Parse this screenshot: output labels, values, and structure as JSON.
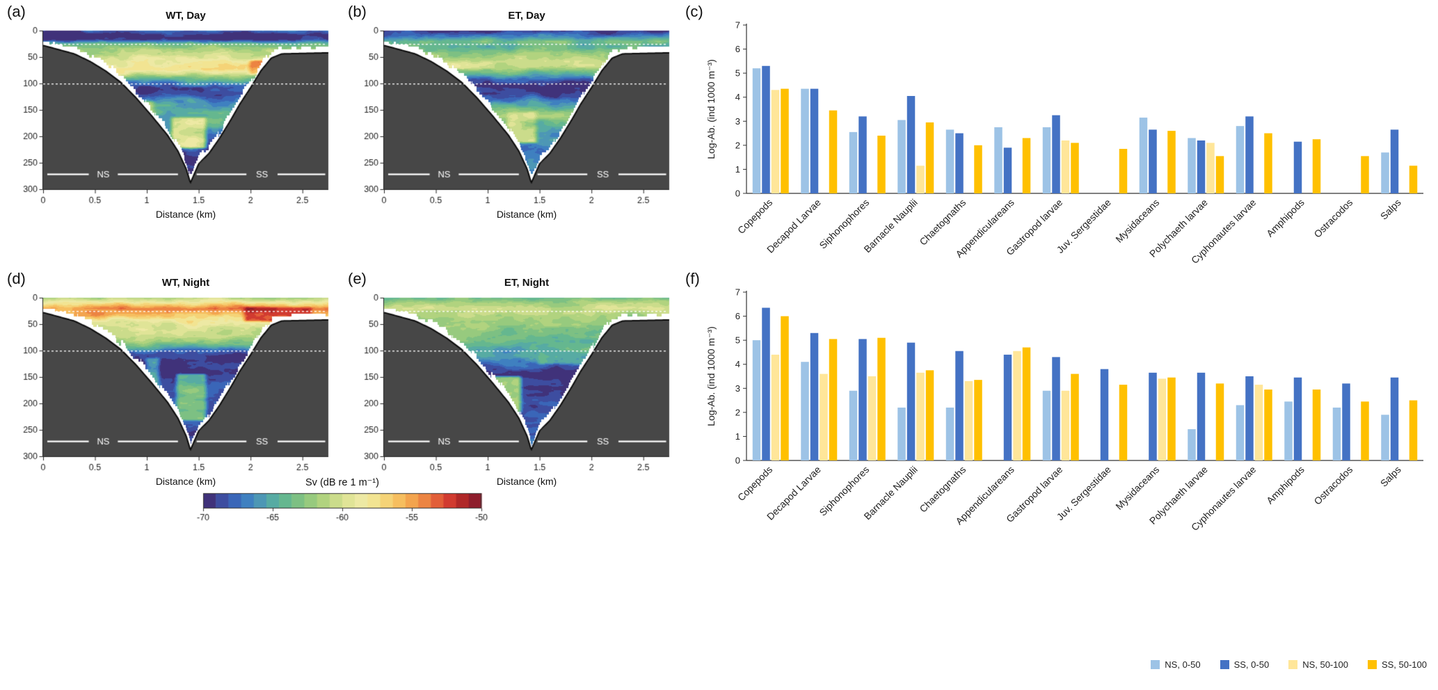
{
  "page": {
    "background": "#ffffff"
  },
  "colorbar": {
    "title": "Sv (dB re 1 m⁻¹)",
    "ticks": [
      -70,
      -65,
      -60,
      -55,
      -50
    ],
    "range": [
      -70,
      -50
    ],
    "colors": [
      "#40327A",
      "#3D4DA0",
      "#3A66B8",
      "#3F80C0",
      "#4D97B5",
      "#57ABA3",
      "#65B78F",
      "#7DC083",
      "#97CA7E",
      "#B1D37F",
      "#CBDC8B",
      "#E0E497",
      "#EDE9A4",
      "#F2E492",
      "#F5D377",
      "#F6BE5F",
      "#F3A44E",
      "#EC8442",
      "#E25E38",
      "#D13B30",
      "#B02828",
      "#8E1D2C"
    ]
  },
  "echo_shared": {
    "xlabel": "Distance (km)",
    "ylabel": "Depth (m)",
    "xticks": [
      0,
      0.5,
      1,
      1.5,
      2,
      2.5
    ],
    "yticks": [
      0,
      50,
      100,
      150,
      200,
      250,
      300
    ],
    "xlim": [
      0,
      2.75
    ],
    "ylim": [
      0,
      300
    ],
    "dotted_lines_m": [
      25,
      100
    ],
    "region_line_depth_m": 272,
    "seafloor_color": "#474747",
    "region_labels": [
      {
        "text": "NS",
        "km": 0.58,
        "segments": [
          [
            0.04,
            0.44
          ],
          [
            0.72,
            1.3
          ]
        ]
      },
      {
        "text": "SS",
        "km": 2.11,
        "segments": [
          [
            1.48,
            1.96
          ],
          [
            2.26,
            2.72
          ]
        ]
      }
    ],
    "bathymetry_km_m": [
      [
        0,
        28
      ],
      [
        0.15,
        36
      ],
      [
        0.3,
        44
      ],
      [
        0.45,
        58
      ],
      [
        0.6,
        76
      ],
      [
        0.75,
        98
      ],
      [
        0.9,
        128
      ],
      [
        1.05,
        162
      ],
      [
        1.2,
        198
      ],
      [
        1.3,
        228
      ],
      [
        1.38,
        262
      ],
      [
        1.42,
        288
      ],
      [
        1.5,
        252
      ],
      [
        1.6,
        232
      ],
      [
        1.7,
        204
      ],
      [
        1.8,
        172
      ],
      [
        1.9,
        138
      ],
      [
        2,
        108
      ],
      [
        2.1,
        76
      ],
      [
        2.2,
        52
      ],
      [
        2.3,
        44
      ],
      [
        2.75,
        42
      ]
    ]
  },
  "chart_data": [
    {
      "id": "a",
      "letter": "(a)",
      "type": "heatmap",
      "title": "WT, Day",
      "xlabel": "Distance (km)",
      "ylabel": "Depth (m)",
      "seed": 3,
      "noise_amp": 2.6,
      "sv_depth_profile": [
        [
          0,
          -68
        ],
        [
          8,
          -70
        ],
        [
          16,
          -69.5
        ],
        [
          24,
          -64
        ],
        [
          34,
          -62
        ],
        [
          48,
          -60.5
        ],
        [
          62,
          -58.5
        ],
        [
          72,
          -57.5
        ],
        [
          80,
          -59
        ],
        [
          90,
          -63.5
        ],
        [
          98,
          -66.5
        ],
        [
          108,
          -69.3
        ],
        [
          122,
          -68.5
        ],
        [
          138,
          -65.5
        ],
        [
          152,
          -64
        ],
        [
          168,
          -64.5
        ],
        [
          185,
          -66
        ],
        [
          205,
          -67.5
        ],
        [
          230,
          -68.5
        ],
        [
          290,
          -69
        ]
      ],
      "patches": [
        {
          "km": [
            1.95,
            2.5
          ],
          "m": [
            52,
            85
          ],
          "sv": -54.5
        },
        {
          "km": [
            1.2,
            1.6
          ],
          "m": [
            160,
            225
          ],
          "sv": -59
        },
        {
          "km": [
            0.85,
            1.1
          ],
          "m": [
            130,
            170
          ],
          "sv": -62
        }
      ]
    },
    {
      "id": "b",
      "letter": "(b)",
      "type": "heatmap",
      "title": "ET, Day",
      "xlabel": "Distance (km)",
      "ylabel": "Depth (m)",
      "seed": 11,
      "noise_amp": 2.4,
      "sv_depth_profile": [
        [
          0,
          -69.5
        ],
        [
          10,
          -67
        ],
        [
          20,
          -63.5
        ],
        [
          30,
          -64.5
        ],
        [
          42,
          -62.5
        ],
        [
          56,
          -61
        ],
        [
          68,
          -61.5
        ],
        [
          80,
          -64
        ],
        [
          92,
          -67.5
        ],
        [
          104,
          -69.6
        ],
        [
          118,
          -69.2
        ],
        [
          132,
          -66.5
        ],
        [
          148,
          -63.5
        ],
        [
          162,
          -62.5
        ],
        [
          178,
          -64
        ],
        [
          198,
          -66
        ],
        [
          222,
          -67
        ],
        [
          290,
          -68
        ]
      ],
      "patches": [
        {
          "km": [
            0.5,
            1.1
          ],
          "m": [
            55,
            75
          ],
          "sv": -60
        },
        {
          "km": [
            1.15,
            1.5
          ],
          "m": [
            150,
            215
          ],
          "sv": -60.5
        }
      ]
    },
    {
      "id": "d",
      "letter": "(d)",
      "type": "heatmap",
      "title": "WT, Night",
      "xlabel": "Distance (km)",
      "ylabel": "Depth (m)",
      "seed": 23,
      "noise_amp": 2.4,
      "sv_depth_profile": [
        [
          0,
          -61
        ],
        [
          10,
          -57.5
        ],
        [
          20,
          -54
        ],
        [
          30,
          -55.5
        ],
        [
          42,
          -58
        ],
        [
          56,
          -60
        ],
        [
          70,
          -60.5
        ],
        [
          82,
          -62
        ],
        [
          92,
          -64.5
        ],
        [
          100,
          -67
        ],
        [
          110,
          -69.4
        ],
        [
          135,
          -69.6
        ],
        [
          165,
          -68.5
        ],
        [
          195,
          -68
        ],
        [
          225,
          -68.5
        ],
        [
          290,
          -69
        ]
      ],
      "patches": [
        {
          "km": [
            1.9,
            2.62
          ],
          "m": [
            14,
            48
          ],
          "sv": -51.5
        },
        {
          "km": [
            0.05,
            0.75
          ],
          "m": [
            16,
            36
          ],
          "sv": -55.5
        },
        {
          "km": [
            1.25,
            1.6
          ],
          "m": [
            140,
            235
          ],
          "sv": -63
        },
        {
          "km": [
            0.95,
            1.15
          ],
          "m": [
            110,
            200
          ],
          "sv": -65
        }
      ]
    },
    {
      "id": "e",
      "letter": "(e)",
      "type": "heatmap",
      "title": "ET, Night",
      "xlabel": "Distance (km)",
      "ylabel": "Depth (m)",
      "seed": 31,
      "noise_amp": 2.1,
      "sv_depth_profile": [
        [
          0,
          -63.5
        ],
        [
          10,
          -61.5
        ],
        [
          20,
          -60
        ],
        [
          32,
          -61.5
        ],
        [
          46,
          -62.5
        ],
        [
          62,
          -63
        ],
        [
          78,
          -63.5
        ],
        [
          92,
          -64.5
        ],
        [
          108,
          -65.5
        ],
        [
          122,
          -67.5
        ],
        [
          140,
          -69.4
        ],
        [
          170,
          -69.8
        ],
        [
          200,
          -69
        ],
        [
          235,
          -68
        ],
        [
          290,
          -68
        ]
      ],
      "patches": [
        {
          "km": [
            1.45,
            2.35
          ],
          "m": [
            92,
            128
          ],
          "sv": -64.5
        },
        {
          "km": [
            1.0,
            1.35
          ],
          "m": [
            145,
            220
          ],
          "sv": -61.5
        },
        {
          "km": [
            0.3,
            0.9
          ],
          "m": [
            20,
            40
          ],
          "sv": -61
        }
      ]
    },
    {
      "id": "c",
      "letter": "(c)",
      "type": "bar",
      "ylabel": "Log-Ab. (ind 1000 m⁻³)",
      "ylim": [
        0,
        7
      ],
      "yticks": [
        0,
        1,
        2,
        3,
        4,
        5,
        6,
        7
      ],
      "categories": [
        "Copepods",
        "Decapod Larvae",
        "Siphonophores",
        "Barnacle Nauplii",
        "Chaetognaths",
        "Appendiculareans",
        "Gastropod larvae",
        "Juv. Sergestidae",
        "Mysidaceans",
        "Polychaeth larvae",
        "Cyphonautes larvae",
        "Amphipods",
        "Ostracodos",
        "Salps"
      ],
      "series": [
        {
          "name": "NS, 0-50",
          "color": "#9DC3E6",
          "values": [
            5.2,
            4.35,
            2.55,
            3.05,
            2.65,
            2.75,
            2.75,
            null,
            3.15,
            2.3,
            2.8,
            null,
            null,
            1.7
          ]
        },
        {
          "name": "SS, 0-50",
          "color": "#4472C4",
          "values": [
            5.3,
            4.35,
            3.2,
            4.05,
            2.5,
            1.9,
            3.25,
            null,
            2.65,
            2.2,
            3.2,
            2.15,
            null,
            2.65
          ]
        },
        {
          "name": "NS, 50-100",
          "color": "#FFE699",
          "values": [
            4.3,
            null,
            null,
            1.15,
            null,
            null,
            2.2,
            null,
            null,
            2.1,
            null,
            null,
            null,
            null
          ]
        },
        {
          "name": "SS, 50-100",
          "color": "#FFC000",
          "values": [
            4.35,
            3.45,
            2.4,
            2.95,
            2.0,
            2.3,
            2.1,
            1.85,
            2.6,
            1.55,
            2.5,
            2.25,
            1.55,
            1.15
          ]
        }
      ]
    },
    {
      "id": "f",
      "letter": "(f)",
      "type": "bar",
      "ylabel": "Log-Ab. (ind 1000 m⁻³)",
      "ylim": [
        0,
        7
      ],
      "yticks": [
        0,
        1,
        2,
        3,
        4,
        5,
        6,
        7
      ],
      "categories": [
        "Copepods",
        "Decapod Larvae",
        "Siphonophores",
        "Barnacle Nauplii",
        "Chaetognaths",
        "Appendiculareans",
        "Gastropod larvae",
        "Juv. Sergestidae",
        "Mysidaceans",
        "Polychaeth larvae",
        "Cyphonautes larvae",
        "Amphipods",
        "Ostracodos",
        "Salps"
      ],
      "series": [
        {
          "name": "NS, 0-50",
          "color": "#9DC3E6",
          "values": [
            5.0,
            4.1,
            2.9,
            2.2,
            2.2,
            null,
            2.9,
            null,
            null,
            1.3,
            2.3,
            2.45,
            2.2,
            1.9
          ]
        },
        {
          "name": "SS, 0-50",
          "color": "#4472C4",
          "values": [
            6.35,
            5.3,
            5.05,
            4.9,
            4.55,
            4.4,
            4.3,
            3.8,
            3.65,
            3.65,
            3.5,
            3.45,
            3.2,
            3.45
          ]
        },
        {
          "name": "NS, 50-100",
          "color": "#FFE699",
          "values": [
            4.4,
            3.6,
            3.5,
            3.65,
            3.3,
            4.55,
            2.9,
            null,
            3.4,
            null,
            3.15,
            null,
            null,
            null
          ]
        },
        {
          "name": "SS, 50-100",
          "color": "#FFC000",
          "values": [
            6.0,
            5.05,
            5.1,
            3.75,
            3.35,
            4.7,
            3.6,
            3.15,
            3.45,
            3.2,
            2.95,
            2.95,
            2.45,
            2.5
          ]
        }
      ]
    }
  ],
  "legend": [
    {
      "label": "NS, 0-50",
      "color": "#9DC3E6"
    },
    {
      "label": "SS, 0-50",
      "color": "#4472C4"
    },
    {
      "label": "NS, 50-100",
      "color": "#FFE699"
    },
    {
      "label": "SS, 50-100",
      "color": "#FFC000"
    }
  ]
}
